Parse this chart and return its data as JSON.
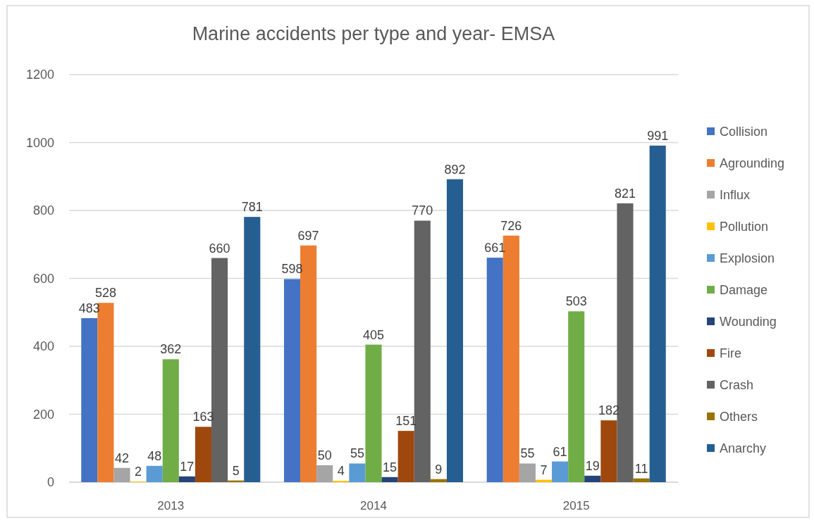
{
  "chart_data": {
    "type": "bar",
    "title": "Marine accidents per type and year- EMSA",
    "categories": [
      "2013",
      "2014",
      "2015"
    ],
    "series": [
      {
        "name": "Collision",
        "color": "#4472c4",
        "values": [
          483,
          598,
          661
        ]
      },
      {
        "name": "Agrounding",
        "color": "#ed7d31",
        "values": [
          528,
          697,
          726
        ]
      },
      {
        "name": "Influx",
        "color": "#a5a5a5",
        "values": [
          42,
          50,
          55
        ]
      },
      {
        "name": "Pollution",
        "color": "#ffc000",
        "values": [
          2,
          4,
          7
        ]
      },
      {
        "name": "Explosion",
        "color": "#5b9bd5",
        "values": [
          48,
          55,
          61
        ]
      },
      {
        "name": "Damage",
        "color": "#70ad47",
        "values": [
          362,
          405,
          503
        ]
      },
      {
        "name": "Wounding",
        "color": "#264478",
        "values": [
          17,
          15,
          19
        ]
      },
      {
        "name": "Fire",
        "color": "#9e480e",
        "values": [
          163,
          151,
          182
        ]
      },
      {
        "name": "Crash",
        "color": "#636363",
        "values": [
          660,
          770,
          821
        ]
      },
      {
        "name": "Others",
        "color": "#997300",
        "values": [
          5,
          9,
          11
        ]
      },
      {
        "name": "Anarchy",
        "color": "#255e91",
        "values": [
          781,
          892,
          991
        ]
      }
    ],
    "ylim": [
      0,
      1200
    ],
    "yticks": [
      0,
      200,
      400,
      600,
      800,
      1000,
      1200
    ],
    "grid": "y",
    "legend": "right",
    "data_labels": true
  }
}
